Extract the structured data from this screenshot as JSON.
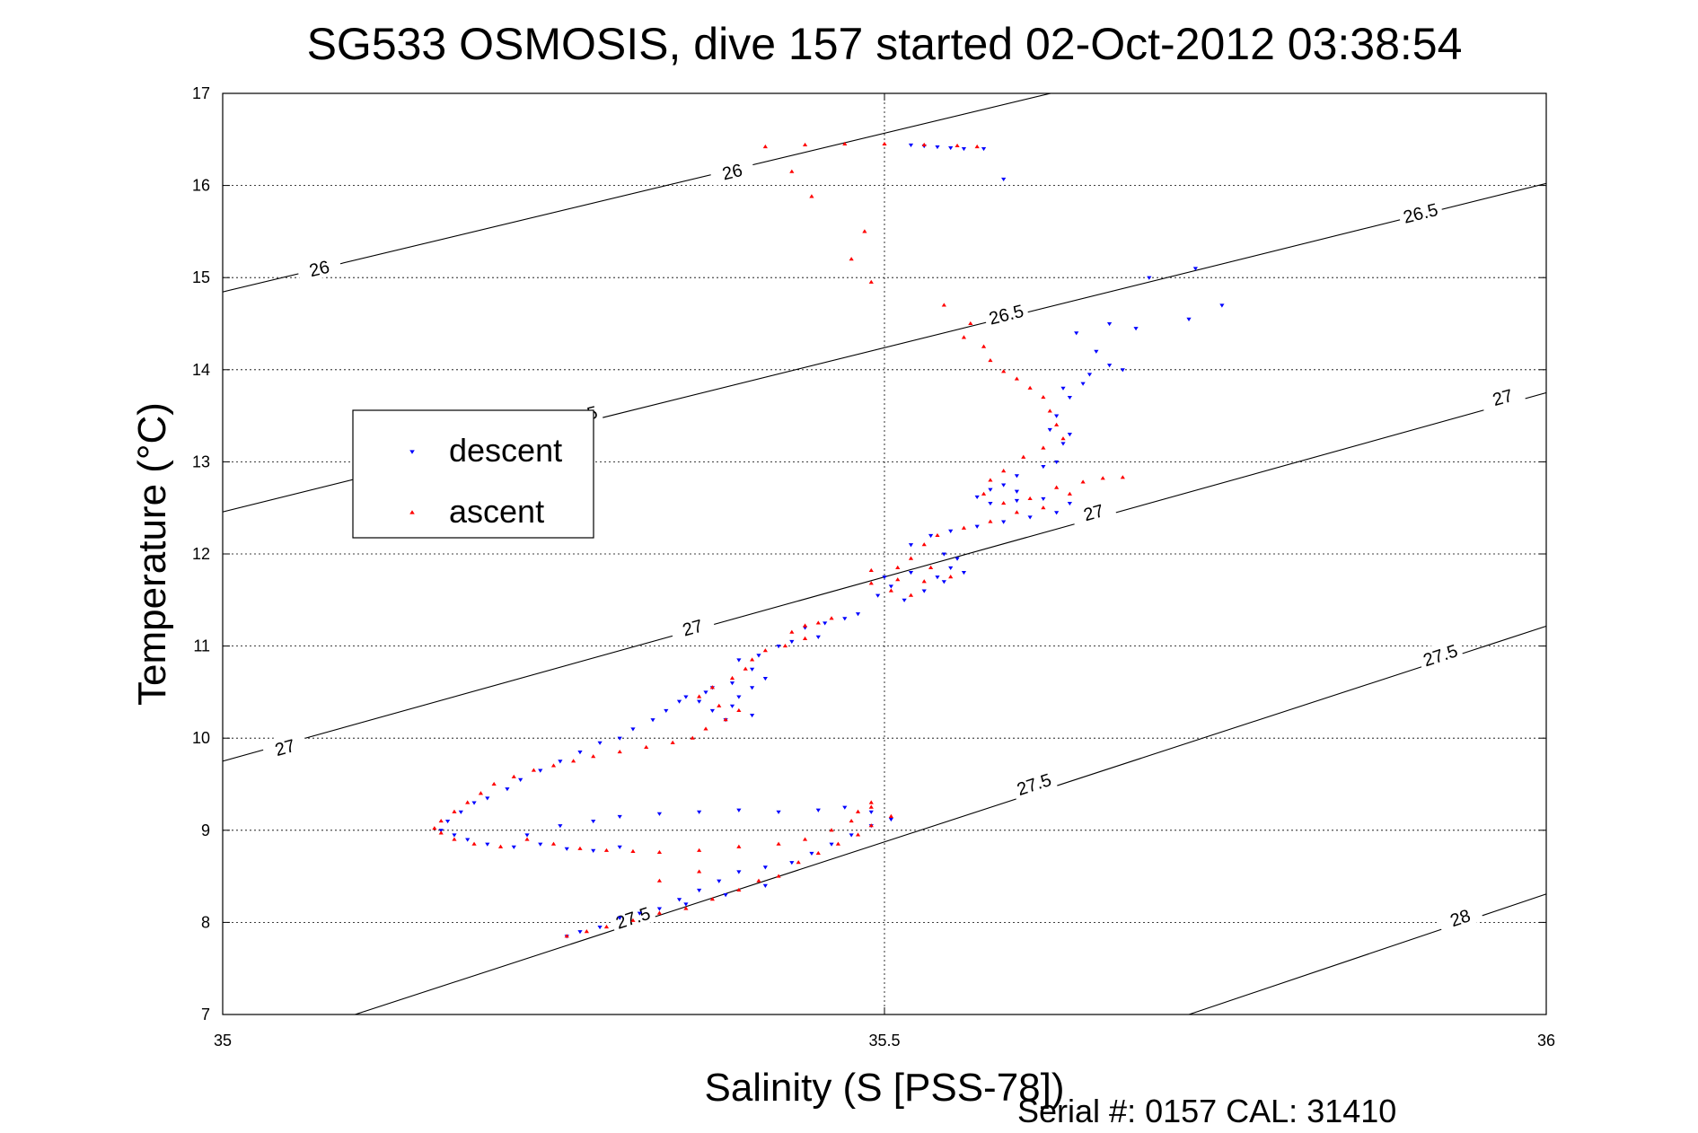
{
  "chart_data": {
    "type": "scatter",
    "title": "SG533 OSMOSIS, dive 157 started 02-Oct-2012 03:38:54",
    "xlabel": "Salinity (S [PSS-78])",
    "ylabel": "Temperature (°C)",
    "footer": "Serial #: 0157  CAL: 31410",
    "xlim": [
      35,
      36
    ],
    "ylim": [
      7,
      17
    ],
    "xticks": [
      35,
      35.5,
      36
    ],
    "xtick_labels": [
      "35",
      "35.5",
      "36"
    ],
    "yticks": [
      7,
      8,
      9,
      10,
      11,
      12,
      13,
      14,
      15,
      16,
      17
    ],
    "ytick_labels": [
      "7",
      "8",
      "9",
      "10",
      "11",
      "12",
      "13",
      "14",
      "15",
      "16",
      "17"
    ],
    "grid": true,
    "legend_position": "left-middle",
    "colors": {
      "descent": "#0000ff",
      "ascent": "#ff0000",
      "axis": "#000000"
    },
    "density_contours": [
      {
        "level": "26",
        "x": [
          34.9,
          35.64
        ],
        "y": [
          14.5,
          17.05
        ],
        "labels": [
          {
            "text": "26",
            "x": 35.073,
            "y": 15.1
          },
          {
            "text": "26",
            "x": 35.385,
            "y": 16.15
          }
        ]
      },
      {
        "level": "26.5",
        "x": [
          34.9,
          36.05
        ],
        "y": [
          12.1,
          16.2
        ],
        "labels": [
          {
            "text": "26.5",
            "x": 35.27,
            "y": 13.5
          },
          {
            "text": "26.5",
            "x": 35.592,
            "y": 14.6
          },
          {
            "text": "26.5",
            "x": 35.905,
            "y": 15.7
          }
        ]
      },
      {
        "level": "27",
        "x": [
          34.9,
          36.05
        ],
        "y": [
          9.35,
          13.95
        ],
        "labels": [
          {
            "text": "27",
            "x": 35.047,
            "y": 9.9
          },
          {
            "text": "27",
            "x": 35.355,
            "y": 11.2
          },
          {
            "text": "27",
            "x": 35.658,
            "y": 12.45
          },
          {
            "text": "27",
            "x": 35.967,
            "y": 13.7
          }
        ]
      },
      {
        "level": "27.5",
        "x": [
          35.1,
          36.05
        ],
        "y": [
          7,
          11.45
        ],
        "labels": [
          {
            "text": "27.5",
            "x": 35.31,
            "y": 8.05
          },
          {
            "text": "27.5",
            "x": 35.613,
            "y": 9.5
          },
          {
            "text": "27.5",
            "x": 35.92,
            "y": 10.9
          }
        ]
      },
      {
        "level": "28",
        "x": [
          35.73,
          36.05
        ],
        "y": [
          7,
          8.55
        ],
        "labels": [
          {
            "text": "28",
            "x": 35.935,
            "y": 8.05
          }
        ]
      }
    ],
    "series": [
      {
        "name": "descent",
        "marker": "triangle-down",
        "color": "#0000ff",
        "points": [
          [
            35.52,
            16.44
          ],
          [
            35.53,
            16.43
          ],
          [
            35.54,
            16.42
          ],
          [
            35.55,
            16.41
          ],
          [
            35.56,
            16.4
          ],
          [
            35.575,
            16.4
          ],
          [
            35.59,
            16.07
          ],
          [
            35.735,
            15.1
          ],
          [
            35.7,
            15.0
          ],
          [
            35.755,
            14.7
          ],
          [
            35.73,
            14.55
          ],
          [
            35.69,
            14.45
          ],
          [
            35.67,
            14.5
          ],
          [
            35.645,
            14.4
          ],
          [
            35.66,
            14.2
          ],
          [
            35.68,
            14.0
          ],
          [
            35.67,
            14.05
          ],
          [
            35.655,
            13.95
          ],
          [
            35.65,
            13.85
          ],
          [
            35.635,
            13.8
          ],
          [
            35.64,
            13.7
          ],
          [
            35.63,
            13.5
          ],
          [
            35.625,
            13.35
          ],
          [
            35.64,
            13.3
          ],
          [
            35.635,
            13.2
          ],
          [
            35.63,
            13.0
          ],
          [
            35.62,
            12.95
          ],
          [
            35.6,
            12.85
          ],
          [
            35.59,
            12.75
          ],
          [
            35.6,
            12.68
          ],
          [
            35.58,
            12.7
          ],
          [
            35.57,
            12.62
          ],
          [
            35.58,
            12.55
          ],
          [
            35.6,
            12.58
          ],
          [
            35.62,
            12.6
          ],
          [
            35.64,
            12.55
          ],
          [
            35.63,
            12.45
          ],
          [
            35.61,
            12.4
          ],
          [
            35.59,
            12.35
          ],
          [
            35.57,
            12.3
          ],
          [
            35.55,
            12.25
          ],
          [
            35.535,
            12.2
          ],
          [
            35.52,
            12.1
          ],
          [
            35.545,
            12.0
          ],
          [
            35.555,
            11.95
          ],
          [
            35.55,
            11.85
          ],
          [
            35.56,
            11.8
          ],
          [
            35.545,
            11.7
          ],
          [
            35.53,
            11.6
          ],
          [
            35.515,
            11.5
          ],
          [
            35.505,
            11.65
          ],
          [
            35.5,
            11.75
          ],
          [
            35.52,
            11.8
          ],
          [
            35.54,
            11.75
          ],
          [
            35.495,
            11.55
          ],
          [
            35.48,
            11.35
          ],
          [
            35.47,
            11.3
          ],
          [
            35.455,
            11.25
          ],
          [
            35.44,
            11.2
          ],
          [
            35.45,
            11.1
          ],
          [
            35.43,
            11.05
          ],
          [
            35.42,
            11.0
          ],
          [
            35.405,
            10.9
          ],
          [
            35.39,
            10.85
          ],
          [
            35.4,
            10.75
          ],
          [
            35.41,
            10.65
          ],
          [
            35.4,
            10.55
          ],
          [
            35.39,
            10.45
          ],
          [
            35.385,
            10.35
          ],
          [
            35.4,
            10.25
          ],
          [
            35.38,
            10.2
          ],
          [
            35.37,
            10.3
          ],
          [
            35.36,
            10.4
          ],
          [
            35.35,
            10.45
          ],
          [
            35.37,
            10.55
          ],
          [
            35.385,
            10.6
          ],
          [
            35.365,
            10.5
          ],
          [
            35.345,
            10.4
          ],
          [
            35.335,
            10.3
          ],
          [
            35.325,
            10.2
          ],
          [
            35.31,
            10.1
          ],
          [
            35.3,
            10.0
          ],
          [
            35.285,
            9.95
          ],
          [
            35.27,
            9.85
          ],
          [
            35.255,
            9.75
          ],
          [
            35.24,
            9.65
          ],
          [
            35.225,
            9.55
          ],
          [
            35.215,
            9.45
          ],
          [
            35.2,
            9.35
          ],
          [
            35.19,
            9.3
          ],
          [
            35.18,
            9.2
          ],
          [
            35.17,
            9.1
          ],
          [
            35.165,
            9.0
          ],
          [
            35.175,
            8.95
          ],
          [
            35.185,
            8.9
          ],
          [
            35.2,
            8.85
          ],
          [
            35.22,
            8.82
          ],
          [
            35.24,
            8.85
          ],
          [
            35.26,
            8.8
          ],
          [
            35.28,
            8.78
          ],
          [
            35.3,
            8.82
          ],
          [
            35.23,
            8.95
          ],
          [
            35.255,
            9.05
          ],
          [
            35.28,
            9.1
          ],
          [
            35.3,
            9.15
          ],
          [
            35.33,
            9.18
          ],
          [
            35.36,
            9.2
          ],
          [
            35.39,
            9.22
          ],
          [
            35.42,
            9.2
          ],
          [
            35.45,
            9.22
          ],
          [
            35.47,
            9.25
          ],
          [
            35.49,
            9.2
          ],
          [
            35.505,
            9.12
          ],
          [
            35.49,
            9.05
          ],
          [
            35.475,
            8.95
          ],
          [
            35.46,
            8.85
          ],
          [
            35.445,
            8.75
          ],
          [
            35.43,
            8.65
          ],
          [
            35.41,
            8.6
          ],
          [
            35.39,
            8.55
          ],
          [
            35.375,
            8.45
          ],
          [
            35.36,
            8.35
          ],
          [
            35.345,
            8.25
          ],
          [
            35.33,
            8.15
          ],
          [
            35.315,
            8.1
          ],
          [
            35.3,
            8.05
          ],
          [
            35.285,
            7.95
          ],
          [
            35.27,
            7.9
          ],
          [
            35.26,
            7.85
          ],
          [
            35.35,
            8.2
          ],
          [
            35.38,
            8.3
          ],
          [
            35.41,
            8.4
          ]
        ]
      },
      {
        "name": "ascent",
        "marker": "triangle-up",
        "color": "#ff0000",
        "points": [
          [
            35.41,
            16.42
          ],
          [
            35.44,
            16.44
          ],
          [
            35.47,
            16.45
          ],
          [
            35.5,
            16.45
          ],
          [
            35.53,
            16.44
          ],
          [
            35.555,
            16.43
          ],
          [
            35.57,
            16.42
          ],
          [
            35.43,
            16.15
          ],
          [
            35.445,
            15.88
          ],
          [
            35.485,
            15.5
          ],
          [
            35.475,
            15.2
          ],
          [
            35.49,
            14.95
          ],
          [
            35.545,
            14.7
          ],
          [
            35.565,
            14.5
          ],
          [
            35.56,
            14.35
          ],
          [
            35.575,
            14.25
          ],
          [
            35.58,
            14.1
          ],
          [
            35.59,
            13.98
          ],
          [
            35.6,
            13.9
          ],
          [
            35.61,
            13.8
          ],
          [
            35.62,
            13.7
          ],
          [
            35.625,
            13.55
          ],
          [
            35.63,
            13.4
          ],
          [
            35.635,
            13.25
          ],
          [
            35.62,
            13.15
          ],
          [
            35.605,
            13.05
          ],
          [
            35.59,
            12.9
          ],
          [
            35.58,
            12.8
          ],
          [
            35.575,
            12.65
          ],
          [
            35.59,
            12.55
          ],
          [
            35.61,
            12.6
          ],
          [
            35.63,
            12.72
          ],
          [
            35.65,
            12.78
          ],
          [
            35.665,
            12.82
          ],
          [
            35.68,
            12.83
          ],
          [
            35.64,
            12.65
          ],
          [
            35.62,
            12.5
          ],
          [
            35.6,
            12.45
          ],
          [
            35.58,
            12.35
          ],
          [
            35.56,
            12.28
          ],
          [
            35.54,
            12.2
          ],
          [
            35.53,
            12.1
          ],
          [
            35.52,
            11.95
          ],
          [
            35.535,
            11.85
          ],
          [
            35.55,
            11.75
          ],
          [
            35.53,
            11.7
          ],
          [
            35.51,
            11.72
          ],
          [
            35.49,
            11.68
          ],
          [
            35.505,
            11.6
          ],
          [
            35.52,
            11.55
          ],
          [
            35.51,
            11.85
          ],
          [
            35.49,
            11.82
          ],
          [
            35.46,
            11.3
          ],
          [
            35.45,
            11.25
          ],
          [
            35.44,
            11.22
          ],
          [
            35.43,
            11.15
          ],
          [
            35.44,
            11.08
          ],
          [
            35.425,
            11.0
          ],
          [
            35.41,
            10.95
          ],
          [
            35.4,
            10.85
          ],
          [
            35.395,
            10.75
          ],
          [
            35.385,
            10.65
          ],
          [
            35.37,
            10.55
          ],
          [
            35.36,
            10.45
          ],
          [
            35.375,
            10.35
          ],
          [
            35.39,
            10.3
          ],
          [
            35.38,
            10.2
          ],
          [
            35.365,
            10.1
          ],
          [
            35.355,
            10.0
          ],
          [
            35.34,
            9.95
          ],
          [
            35.32,
            9.9
          ],
          [
            35.3,
            9.85
          ],
          [
            35.28,
            9.8
          ],
          [
            35.265,
            9.75
          ],
          [
            35.25,
            9.7
          ],
          [
            35.235,
            9.65
          ],
          [
            35.22,
            9.58
          ],
          [
            35.205,
            9.5
          ],
          [
            35.195,
            9.4
          ],
          [
            35.185,
            9.3
          ],
          [
            35.175,
            9.2
          ],
          [
            35.165,
            9.1
          ],
          [
            35.16,
            9.02
          ],
          [
            35.165,
            8.97
          ],
          [
            35.175,
            8.9
          ],
          [
            35.19,
            8.85
          ],
          [
            35.21,
            8.82
          ],
          [
            35.23,
            8.9
          ],
          [
            35.25,
            8.85
          ],
          [
            35.27,
            8.8
          ],
          [
            35.29,
            8.78
          ],
          [
            35.31,
            8.77
          ],
          [
            35.33,
            8.76
          ],
          [
            35.36,
            8.78
          ],
          [
            35.39,
            8.82
          ],
          [
            35.42,
            8.85
          ],
          [
            35.44,
            8.9
          ],
          [
            35.46,
            9.0
          ],
          [
            35.475,
            9.1
          ],
          [
            35.48,
            9.2
          ],
          [
            35.49,
            9.25
          ],
          [
            35.49,
            9.3
          ],
          [
            35.505,
            9.15
          ],
          [
            35.49,
            9.05
          ],
          [
            35.48,
            8.95
          ],
          [
            35.465,
            8.85
          ],
          [
            35.45,
            8.75
          ],
          [
            35.435,
            8.65
          ],
          [
            35.42,
            8.5
          ],
          [
            35.405,
            8.45
          ],
          [
            35.39,
            8.35
          ],
          [
            35.37,
            8.25
          ],
          [
            35.35,
            8.15
          ],
          [
            35.33,
            8.1
          ],
          [
            35.31,
            8.02
          ],
          [
            35.29,
            7.95
          ],
          [
            35.275,
            7.9
          ],
          [
            35.26,
            7.85
          ],
          [
            35.33,
            8.45
          ],
          [
            35.36,
            8.55
          ]
        ]
      }
    ]
  }
}
